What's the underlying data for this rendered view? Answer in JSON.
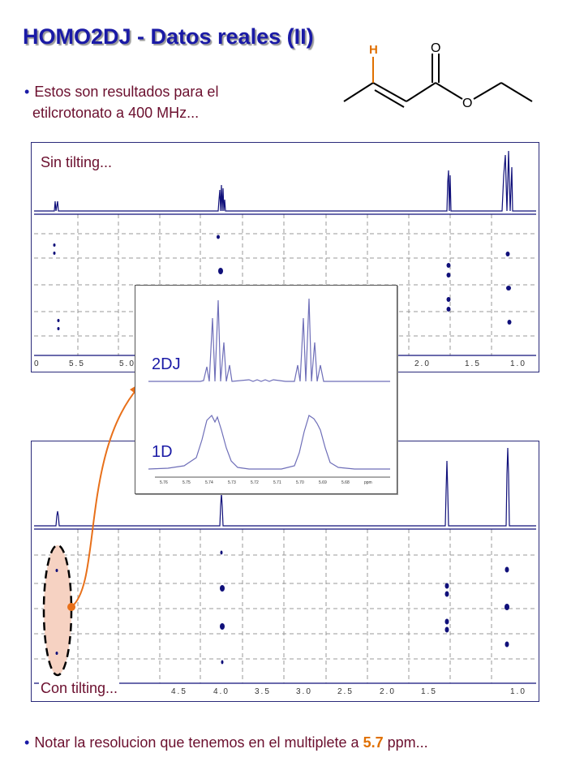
{
  "slide": {
    "title": "HOMO2DJ - Datos reales (II)",
    "bullet1_line1": "Estos son resultados para el",
    "bullet1_line2": "etilcrotonato a 400 MHz...",
    "bullet2_pre": "Notar la resolucion que tenemos en el multiplete a",
    "bullet2_highlight": "5.7",
    "bullet2_post": "ppm...",
    "molecule_labels": {
      "h": "H",
      "o_carbonyl": "O",
      "o_ester": "O"
    }
  },
  "top_panel": {
    "label": "Sin tilting...",
    "axis_ticks": [
      "0",
      "5.5",
      "5.0",
      "2.0",
      "1.5",
      "1.0"
    ]
  },
  "bottom_panel": {
    "label": "Con tilting...",
    "axis_ticks": [
      "4.5",
      "4.0",
      "3.5",
      "3.0",
      "2.5",
      "2.0",
      "1.5",
      "1.0"
    ]
  },
  "inset": {
    "label_2dj": "2DJ",
    "label_1d": "1D",
    "axis_ticks": [
      "5.76",
      "5.75",
      "5.74",
      "5.73",
      "5.72",
      "5.71",
      "5.70",
      "5.69",
      "5.68",
      "ppm"
    ]
  },
  "colors": {
    "title": "#1a1aa6",
    "bullet_text": "#6b0f2e",
    "highlight": "#e07000",
    "spectrum": "#10107a",
    "inset_trace": "#6e6eb8",
    "arrow": "#e8701a"
  }
}
